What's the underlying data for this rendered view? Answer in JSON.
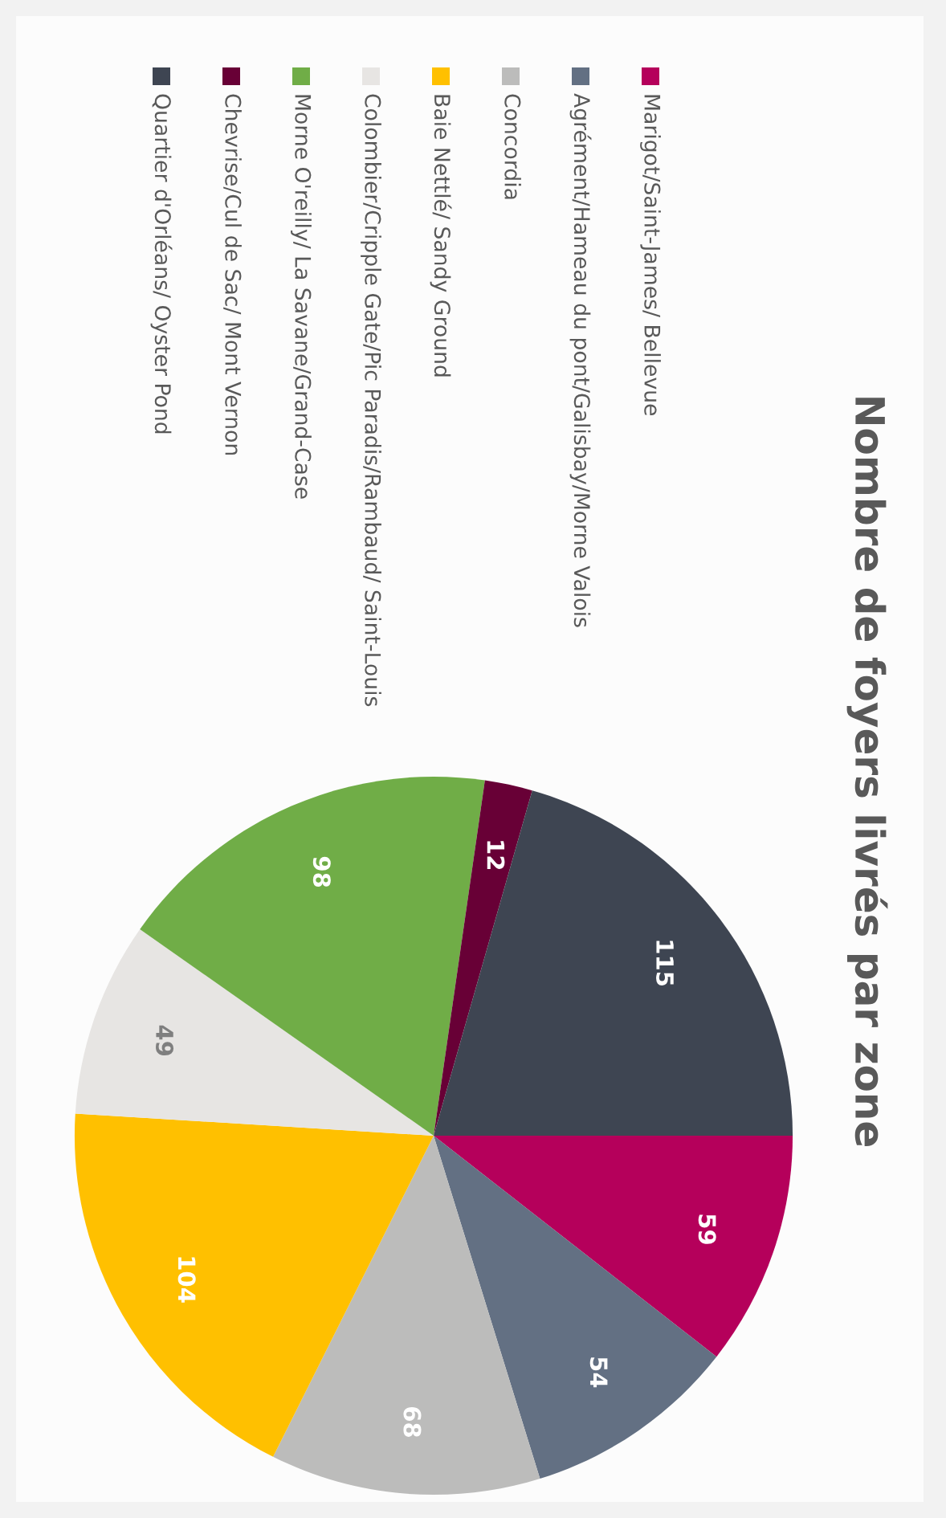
{
  "chart_data": {
    "type": "pie",
    "title": "Nombre de foyers livrés par zone",
    "categories": [
      "Marigot/Saint-James/ Bellevue",
      "Agrément/Hameau du pont/Galisbay/Morne Valois",
      "Concordia",
      "Baie Nettlé/ Sandy Ground",
      "Colombier/Cripple Gate/Pic Paradis/Rambaud/ Saint-Louis",
      "Morne O'reilly/ La Savane/Grand-Case",
      "Chevrise/Cul de Sac/ Mont Vernon",
      "Quartier d'Orléans/ Oyster Pond"
    ],
    "values": [
      59,
      54,
      68,
      104,
      49,
      98,
      12,
      115
    ],
    "colors": [
      "#b5005b",
      "#637083",
      "#bcbcbb",
      "#ffc000",
      "#e7e5e3",
      "#70ad47",
      "#680036",
      "#3e4552"
    ],
    "data_labels": true,
    "legend": "left"
  }
}
